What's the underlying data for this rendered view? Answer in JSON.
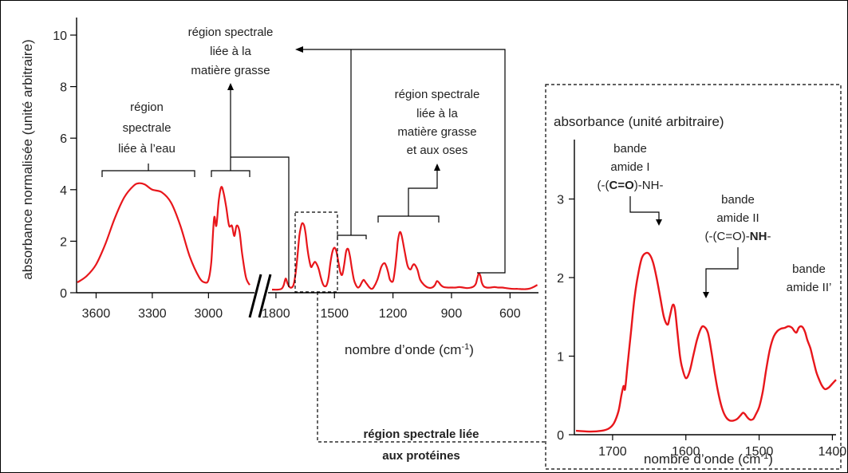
{
  "chart_data": [
    {
      "type": "line",
      "xlabel": "nombre d’onde (cm",
      "xlabel_sup": "-1",
      "xlabel_tail": ")",
      "ylabel": "absorbance normalisée (unité arbitraire)",
      "ylim": [
        0,
        10.5
      ],
      "y_ticks": [
        "0",
        "2",
        "4",
        "6",
        "8",
        "10"
      ],
      "axis_break": true,
      "segments": [
        {
          "xlim": [
            3700,
            2780
          ],
          "x_ticks": [
            3600,
            3300,
            3000
          ]
        },
        {
          "xlim": [
            1820,
            450
          ],
          "x_ticks": [
            1800,
            1500,
            1200,
            900,
            600
          ]
        }
      ],
      "x_tick_labels": [
        "3600",
        "3300",
        "3000",
        "1800",
        "1500",
        "1200",
        "900",
        "600"
      ],
      "series": [
        {
          "color": "#e8161b",
          "segment_1": {
            "x": [
              3700,
              3650,
              3600,
              3550,
              3500,
              3450,
              3400,
              3370,
              3340,
              3300,
              3250,
              3200,
              3150,
              3100,
              3050,
              3020,
              3000,
              2985,
              2970,
              2958,
              2945,
              2932,
              2920,
              2905,
              2890,
              2875,
              2862,
              2850,
              2835,
              2820,
              2800,
              2780
            ],
            "y": [
              0.4,
              0.65,
              1.1,
              1.9,
              2.9,
              3.7,
              4.15,
              4.25,
              4.2,
              4.0,
              3.9,
              3.5,
              2.6,
              1.4,
              0.6,
              0.4,
              0.5,
              1.2,
              2.9,
              2.6,
              3.6,
              4.1,
              3.9,
              3.3,
              2.6,
              2.6,
              2.2,
              2.6,
              2.4,
              1.5,
              0.6,
              0.3
            ]
          },
          "segment_2": {
            "x": [
              1820,
              1790,
              1770,
              1760,
              1750,
              1740,
              1730,
              1720,
              1710,
              1700,
              1690,
              1680,
              1672,
              1665,
              1655,
              1648,
              1640,
              1630,
              1620,
              1610,
              1600,
              1590,
              1580,
              1570,
              1560,
              1550,
              1540,
              1530,
              1520,
              1510,
              1500,
              1490,
              1480,
              1470,
              1460,
              1450,
              1440,
              1430,
              1420,
              1410,
              1400,
              1390,
              1380,
              1370,
              1360,
              1350,
              1340,
              1330,
              1320,
              1310,
              1300,
              1280,
              1260,
              1245,
              1235,
              1225,
              1215,
              1200,
              1190,
              1180,
              1175,
              1165,
              1155,
              1140,
              1125,
              1110,
              1100,
              1090,
              1075,
              1060,
              1040,
              1020,
              1000,
              985,
              975,
              965,
              955,
              940,
              920,
              900,
              880,
              860,
              840,
              820,
              800,
              785,
              775,
              768,
              760,
              752,
              745,
              735,
              720,
              700,
              680,
              660,
              640,
              620,
              600,
              580,
              560,
              540,
              520,
              500,
              480,
              460
            ],
            "y": [
              0.12,
              0.12,
              0.16,
              0.3,
              0.55,
              0.35,
              0.22,
              0.2,
              0.3,
              0.7,
              1.4,
              2.2,
              2.55,
              2.7,
              2.6,
              2.3,
              1.8,
              1.3,
              1.0,
              1.1,
              1.2,
              1.1,
              0.9,
              0.6,
              0.35,
              0.25,
              0.3,
              0.6,
              1.2,
              1.6,
              1.75,
              1.6,
              1.2,
              0.8,
              0.7,
              1.1,
              1.6,
              1.7,
              1.4,
              0.9,
              0.5,
              0.3,
              0.2,
              0.25,
              0.4,
              0.5,
              0.4,
              0.3,
              0.2,
              0.15,
              0.2,
              0.5,
              1.0,
              1.15,
              1.05,
              0.8,
              0.5,
              0.45,
              0.9,
              1.6,
              2.0,
              2.35,
              2.2,
              1.6,
              1.05,
              0.9,
              1.05,
              1.1,
              0.9,
              0.5,
              0.3,
              0.2,
              0.2,
              0.3,
              0.45,
              0.4,
              0.3,
              0.22,
              0.2,
              0.2,
              0.2,
              0.22,
              0.2,
              0.18,
              0.2,
              0.25,
              0.35,
              0.55,
              0.75,
              0.65,
              0.4,
              0.25,
              0.2,
              0.2,
              0.22,
              0.2,
              0.2,
              0.18,
              0.16,
              0.15,
              0.15,
              0.14,
              0.14,
              0.16,
              0.22,
              0.3
            ]
          }
        }
      ],
      "annotations": [
        {
          "lines": [
            "région",
            "spectrale",
            "liée à l’eau"
          ]
        },
        {
          "lines": [
            "région spectrale",
            "liée à la",
            "matière  grasse"
          ]
        },
        {
          "lines": [
            "région spectrale",
            "liée à la",
            "matière  grasse",
            "et aux oses"
          ]
        },
        {
          "lines": [
            "région spectrale liée",
            "aux protéines"
          ],
          "bold": true
        }
      ]
    },
    {
      "type": "line",
      "ylabel": "absorbance (unité arbitraire)",
      "xlabel": "nombre d’onde (cm",
      "xlabel_sup": "-1",
      "xlabel_tail": ")",
      "xlim": [
        1750,
        1395
      ],
      "ylim": [
        0,
        3.3
      ],
      "x_ticks": [
        1700,
        1600,
        1500,
        1400
      ],
      "x_tick_labels": [
        "1700",
        "1600",
        "1500",
        "1400"
      ],
      "y_ticks": [
        0,
        1,
        2,
        3
      ],
      "y_tick_labels": [
        "0",
        "1",
        "2",
        "3"
      ],
      "series": [
        {
          "color": "#e8161b",
          "x": [
            1750,
            1730,
            1715,
            1705,
            1698,
            1692,
            1688,
            1685,
            1683,
            1680,
            1675,
            1670,
            1665,
            1660,
            1655,
            1650,
            1645,
            1640,
            1635,
            1630,
            1625,
            1622,
            1618,
            1615,
            1612,
            1608,
            1605,
            1600,
            1595,
            1590,
            1585,
            1580,
            1576,
            1570,
            1565,
            1560,
            1555,
            1550,
            1545,
            1540,
            1535,
            1530,
            1525,
            1522,
            1519,
            1516,
            1512,
            1508,
            1505,
            1500,
            1495,
            1490,
            1485,
            1480,
            1475,
            1470,
            1465,
            1460,
            1455,
            1452,
            1449,
            1446,
            1443,
            1440,
            1437,
            1434,
            1430,
            1426,
            1422,
            1418,
            1414,
            1410,
            1405,
            1400,
            1395
          ],
          "y": [
            0.05,
            0.04,
            0.05,
            0.08,
            0.15,
            0.3,
            0.5,
            0.62,
            0.58,
            0.85,
            1.3,
            1.75,
            2.05,
            2.25,
            2.31,
            2.3,
            2.2,
            2.0,
            1.75,
            1.5,
            1.4,
            1.5,
            1.65,
            1.6,
            1.35,
            1.0,
            0.85,
            0.72,
            0.8,
            1.0,
            1.2,
            1.34,
            1.38,
            1.3,
            1.05,
            0.75,
            0.5,
            0.32,
            0.22,
            0.18,
            0.18,
            0.2,
            0.25,
            0.28,
            0.26,
            0.22,
            0.19,
            0.2,
            0.25,
            0.35,
            0.55,
            0.85,
            1.1,
            1.25,
            1.32,
            1.35,
            1.36,
            1.38,
            1.36,
            1.32,
            1.3,
            1.36,
            1.38,
            1.36,
            1.3,
            1.2,
            1.1,
            0.95,
            0.8,
            0.7,
            0.62,
            0.58,
            0.6,
            0.65,
            0.7
          ]
        }
      ],
      "annotations": [
        {
          "lines": [
            "bande",
            "amide I"
          ],
          "formula": [
            "(-(",
            "C=O",
            ")-NH-"
          ]
        },
        {
          "lines": [
            "bande",
            "amide II"
          ],
          "formula": [
            "(-(C=O)-",
            "NH",
            "-"
          ]
        },
        {
          "lines": [
            "bande",
            "amide II’"
          ]
        }
      ]
    }
  ],
  "colors": {
    "curve": "#e8161b",
    "frame": "#000000",
    "text": "#222222"
  }
}
